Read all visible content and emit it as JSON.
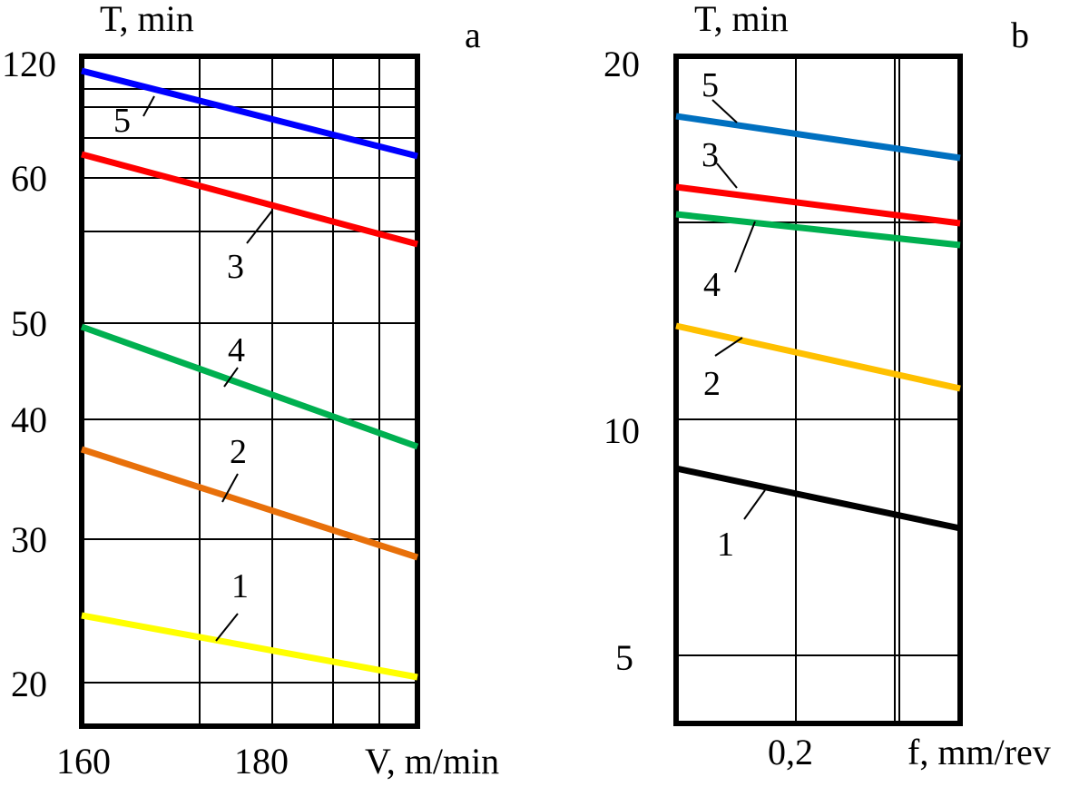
{
  "chart_data": [
    {
      "type": "line",
      "panel": "a",
      "xlabel": "V, m/min",
      "ylabel": "T, min",
      "scale": "log-log",
      "x_ticks": [
        "160",
        "180"
      ],
      "y_ticks": [
        "20",
        "30",
        "40",
        "50",
        "60",
        "120"
      ],
      "grid": true,
      "series": [
        {
          "name": "1",
          "color": "#ffff00",
          "x": [
            160,
            195
          ],
          "y": [
            24.2,
            20.3
          ]
        },
        {
          "name": "2",
          "color": "#e8700a",
          "x": [
            160,
            195
          ],
          "y": [
            35.5,
            28.6
          ]
        },
        {
          "name": "3",
          "color": "#ff0000",
          "x": [
            160,
            195
          ],
          "y": [
            61.6,
            53.7
          ]
        },
        {
          "name": "4",
          "color": "#00b050",
          "x": [
            160,
            195
          ],
          "y": [
            48.3,
            37.8
          ]
        },
        {
          "name": "5",
          "color": "#0000ff",
          "x": [
            160,
            195
          ],
          "y": [
            112,
            87
          ]
        }
      ]
    },
    {
      "type": "line",
      "panel": "b",
      "xlabel": "f, mm/rev",
      "ylabel": "T, min",
      "scale": "log-y",
      "x_ticks": [
        "0,2"
      ],
      "y_ticks": [
        "5",
        "10",
        "20"
      ],
      "grid": true,
      "series": [
        {
          "name": "1",
          "color": "#000000",
          "x": [
            0.1,
            0.3
          ],
          "y": [
            9.0,
            8.0
          ]
        },
        {
          "name": "2",
          "color": "#ffc000",
          "x": [
            0.1,
            0.3
          ],
          "y": [
            12.1,
            10.7
          ]
        },
        {
          "name": "3",
          "color": "#ff0000",
          "x": [
            0.1,
            0.3
          ],
          "y": [
            15.9,
            15.1
          ]
        },
        {
          "name": "4",
          "color": "#00b050",
          "x": [
            0.1,
            0.3
          ],
          "y": [
            15.3,
            14.6
          ]
        },
        {
          "name": "5",
          "color": "#0070c0",
          "x": [
            0.1,
            0.3
          ],
          "y": [
            17.9,
            17.0
          ]
        }
      ]
    }
  ]
}
